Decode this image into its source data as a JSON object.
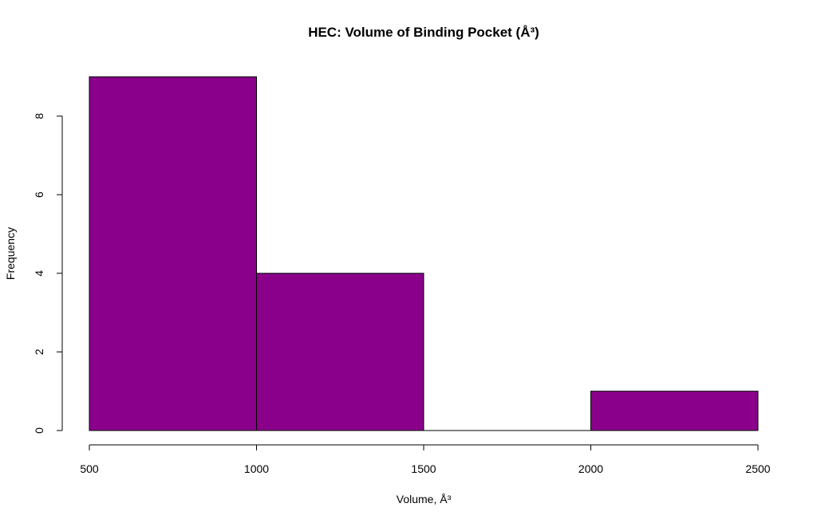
{
  "chart_data": {
    "type": "bar",
    "title": "HEC: Volume of Binding Pocket (Å³)",
    "xlabel": "Volume, Å³",
    "ylabel": "Frequency",
    "bins": [
      {
        "start": 500,
        "end": 1000,
        "count": 9
      },
      {
        "start": 1000,
        "end": 1500,
        "count": 4
      },
      {
        "start": 1500,
        "end": 2000,
        "count": 0
      },
      {
        "start": 2000,
        "end": 2500,
        "count": 1
      }
    ],
    "xlim": [
      500,
      2500
    ],
    "ylim": [
      0,
      9
    ],
    "x_ticks": [
      500,
      1000,
      1500,
      2000,
      2500
    ],
    "x_tick_labels": [
      "500",
      "1000",
      "1500",
      "2000",
      "2500"
    ],
    "y_ticks": [
      0,
      2,
      4,
      6,
      8
    ],
    "y_tick_labels": [
      "0",
      "2",
      "4",
      "6",
      "8"
    ],
    "bar_color": "#8b008b",
    "bar_border_color": "#000000",
    "grid": false,
    "legend": "none"
  }
}
